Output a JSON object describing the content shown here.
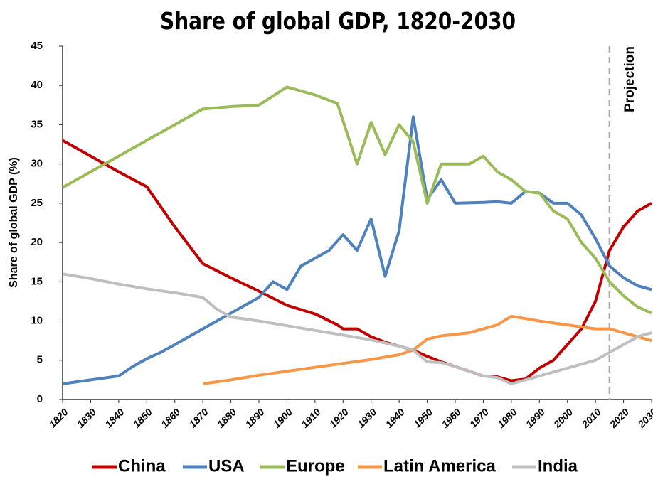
{
  "chart_data": {
    "type": "line",
    "title": "Share of global GDP, 1820-2030",
    "y_label": "Share of global GDP (%)",
    "annotation": "Projection",
    "projection_x": 2015,
    "xlim": [
      1820,
      2030
    ],
    "xticks": [
      1820,
      1830,
      1840,
      1850,
      1860,
      1870,
      1880,
      1890,
      1900,
      1910,
      1920,
      1930,
      1940,
      1950,
      1960,
      1970,
      1980,
      1990,
      2000,
      2010,
      2020,
      2030
    ],
    "ylim": [
      0,
      45
    ],
    "yticks": [
      0,
      5,
      10,
      15,
      20,
      25,
      30,
      35,
      40,
      45
    ],
    "series": [
      {
        "name": "China",
        "color": "#c00000",
        "x": [
          1820,
          1830,
          1840,
          1850,
          1860,
          1870,
          1880,
          1890,
          1900,
          1910,
          1918,
          1920,
          1925,
          1930,
          1935,
          1940,
          1945,
          1950,
          1955,
          1960,
          1965,
          1970,
          1975,
          1980,
          1985,
          1990,
          1995,
          2000,
          2005,
          2010,
          2015,
          2020,
          2025,
          2030
        ],
        "values": [
          33,
          31,
          29,
          27.1,
          22,
          17.3,
          15.5,
          13.8,
          12,
          10.9,
          9.5,
          9,
          9,
          8,
          7.3,
          6.8,
          6.3,
          5.5,
          4.8,
          4.2,
          3.6,
          3,
          2.9,
          2.4,
          2.6,
          4,
          5,
          7,
          9,
          12.5,
          19,
          22,
          24,
          25
        ]
      },
      {
        "name": "USA",
        "color": "#4f81bd",
        "x": [
          1820,
          1840,
          1845,
          1850,
          1855,
          1860,
          1870,
          1880,
          1890,
          1895,
          1900,
          1905,
          1910,
          1915,
          1920,
          1925,
          1930,
          1935,
          1940,
          1945,
          1950,
          1955,
          1960,
          1970,
          1975,
          1980,
          1985,
          1990,
          1995,
          2000,
          2005,
          2010,
          2015,
          2020,
          2025,
          2030
        ],
        "values": [
          2,
          3,
          4.2,
          5.2,
          6,
          7,
          9,
          11,
          13,
          15,
          14,
          17,
          18,
          19,
          21,
          19,
          23,
          15.7,
          21.5,
          36,
          25.5,
          28,
          25,
          25.1,
          25.2,
          25,
          26.5,
          26.3,
          25,
          25,
          23.5,
          20.5,
          17,
          15.5,
          14.5,
          14
        ]
      },
      {
        "name": "Europe",
        "color": "#9bbb59",
        "x": [
          1820,
          1830,
          1840,
          1850,
          1860,
          1870,
          1880,
          1890,
          1900,
          1910,
          1918,
          1925,
          1930,
          1935,
          1940,
          1945,
          1950,
          1955,
          1960,
          1965,
          1970,
          1975,
          1980,
          1985,
          1990,
          1995,
          2000,
          2005,
          2010,
          2015,
          2020,
          2025,
          2030
        ],
        "values": [
          27,
          29,
          31,
          33,
          35,
          37,
          37.3,
          37.5,
          39.8,
          38.8,
          37.7,
          30,
          35.3,
          31.2,
          35,
          32.8,
          25,
          30,
          30,
          30,
          31,
          29,
          28,
          26.5,
          26.3,
          24,
          23,
          20,
          18,
          15,
          13.2,
          11.8,
          11
        ]
      },
      {
        "name": "Latin America",
        "color": "#f79646",
        "x": [
          1870,
          1880,
          1890,
          1900,
          1910,
          1920,
          1930,
          1940,
          1945,
          1950,
          1955,
          1965,
          1975,
          1980,
          1985,
          1990,
          2000,
          2010,
          2015,
          2020,
          2030
        ],
        "values": [
          2,
          2.5,
          3.1,
          3.6,
          4.1,
          4.6,
          5.1,
          5.7,
          6.3,
          7.7,
          8.1,
          8.5,
          9.5,
          10.6,
          10.3,
          10,
          9.5,
          9,
          9,
          8.5,
          7.5
        ]
      },
      {
        "name": "India",
        "color": "#bfbfbf",
        "x": [
          1820,
          1830,
          1840,
          1850,
          1860,
          1870,
          1875,
          1880,
          1890,
          1900,
          1910,
          1920,
          1930,
          1940,
          1945,
          1950,
          1955,
          1960,
          1970,
          1975,
          1980,
          1985,
          1990,
          2000,
          2010,
          2015,
          2020,
          2025,
          2030
        ],
        "values": [
          16,
          15.4,
          14.7,
          14.1,
          13.6,
          13,
          11.5,
          10.5,
          10,
          9.4,
          8.8,
          8.2,
          7.6,
          6.8,
          6.3,
          4.8,
          4.7,
          4.2,
          3,
          2.8,
          2,
          2.5,
          3,
          4,
          5,
          6,
          7,
          8,
          8.5
        ]
      }
    ]
  }
}
